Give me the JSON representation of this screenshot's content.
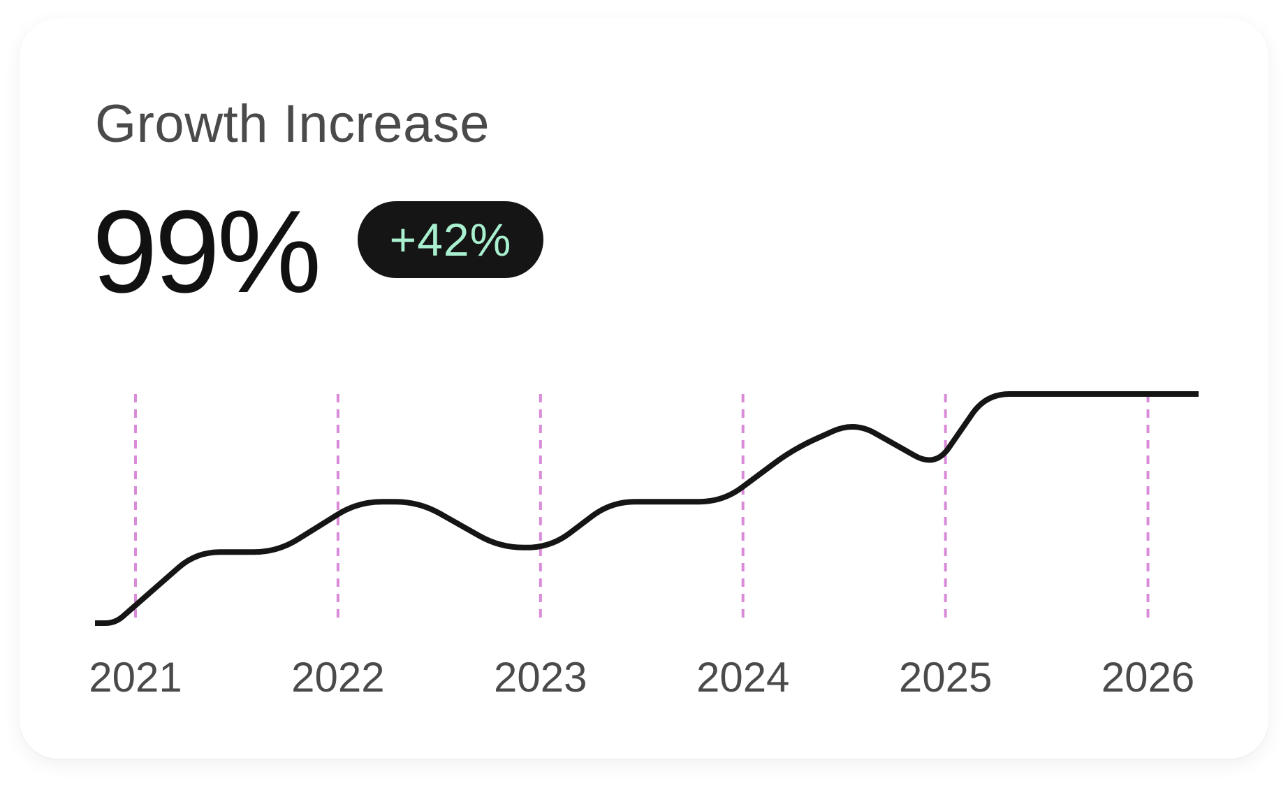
{
  "card": {
    "title": "Growth Increase",
    "value": "99%",
    "badge": "+42%"
  },
  "colors": {
    "line": "#151515",
    "gridline": "#d98ad9",
    "badge_bg": "#151515",
    "badge_text": "#a8f0cf",
    "title_text": "#4a4a4a",
    "value_text": "#111111"
  },
  "chart_data": {
    "type": "line",
    "title": "",
    "xlabel": "",
    "ylabel": "",
    "categories": [
      "2021",
      "2022",
      "2023",
      "2024",
      "2025",
      "2026"
    ],
    "grid": "vertical dashed at each year",
    "legend": "none",
    "xlim": [
      2020.8,
      2026.25
    ],
    "ylim": [
      0,
      10
    ],
    "series": [
      {
        "values": [
          [
            2020.8,
            0.0
          ],
          [
            2020.9,
            0.0
          ],
          [
            2021.3,
            3.1
          ],
          [
            2021.7,
            3.1
          ],
          [
            2022.1,
            5.3
          ],
          [
            2022.4,
            5.3
          ],
          [
            2022.8,
            3.3
          ],
          [
            2023.05,
            3.3
          ],
          [
            2023.35,
            5.3
          ],
          [
            2023.9,
            5.3
          ],
          [
            2024.25,
            7.6
          ],
          [
            2024.55,
            8.8
          ],
          [
            2024.95,
            6.8
          ],
          [
            2025.2,
            10.0
          ],
          [
            2025.6,
            10.0
          ],
          [
            2026.25,
            10.0
          ]
        ]
      }
    ]
  }
}
